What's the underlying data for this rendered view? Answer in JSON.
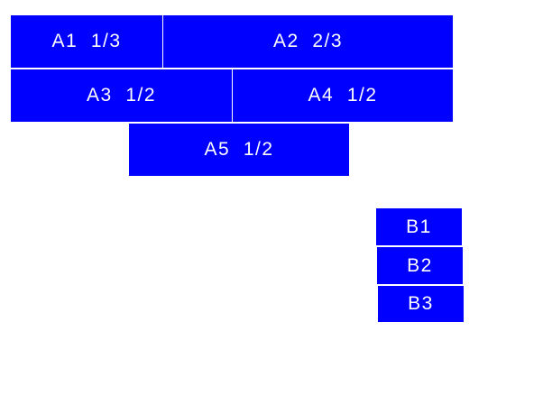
{
  "colors": {
    "box": "#0000ff",
    "text": "#ffffff"
  },
  "group_a": [
    {
      "label": "A1  1/3"
    },
    {
      "label": "A2  2/3"
    },
    {
      "label": "A3  1/2"
    },
    {
      "label": "A4  1/2"
    },
    {
      "label": "A5  1/2"
    }
  ],
  "group_b": [
    {
      "label": "B1"
    },
    {
      "label": "B2"
    },
    {
      "label": "B3"
    }
  ]
}
